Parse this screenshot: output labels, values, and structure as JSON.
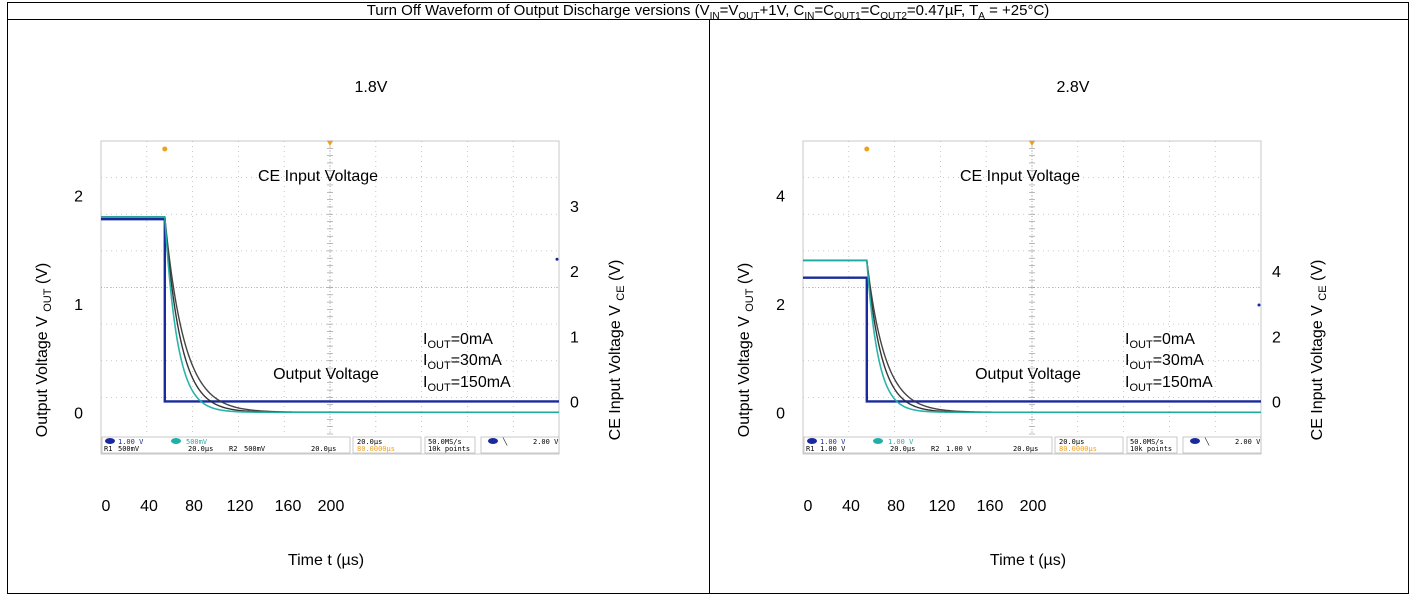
{
  "header": {
    "title_parts": [
      {
        "t": "Turn Off Waveform of Output Discharge versions (V"
      },
      {
        "t": "IN",
        "sub": true
      },
      {
        "t": "=V"
      },
      {
        "t": "OUT",
        "sub": true
      },
      {
        "t": "+1V, C"
      },
      {
        "t": "IN",
        "sub": true
      },
      {
        "t": "=C"
      },
      {
        "t": "OUT1",
        "sub": true
      },
      {
        "t": "=C"
      },
      {
        "t": "OUT2",
        "sub": true
      },
      {
        "t": "=0.47µF, T"
      },
      {
        "t": "A",
        "sub": true
      },
      {
        "t": " = +25°C)"
      }
    ]
  },
  "chart_data": [
    {
      "type": "line",
      "title": "1.8V",
      "xlabel": "Time t (µs)",
      "ylabel": "Output Voltage V OUT (V)",
      "y2label": "CE Input Voltage V CE (V)",
      "x_ticks": [
        0,
        40,
        80,
        120,
        160,
        200
      ],
      "y_ticks": [
        0,
        1,
        2
      ],
      "y2_ticks": [
        0,
        1,
        2,
        3
      ],
      "xlim": [
        0,
        200
      ],
      "ylim": [
        -0.2,
        2.5
      ],
      "y2lim": [
        -0.5,
        4
      ],
      "grid": true,
      "ce_label": "CE Input Voltage",
      "out_label": "Output Voltage",
      "legend": [
        "IOUT=0mA",
        "IOUT=30mA",
        "IOUT=150mA"
      ],
      "ce_high": 2.8,
      "ce_low": 0,
      "ce_fall_x": 28,
      "vout": 1.8,
      "tau": [
        7,
        8.5,
        5.5
      ],
      "series": [
        {
          "name": "CE",
          "color": "#1a2a9c"
        },
        {
          "name": "IOUT=0mA",
          "color": "#2a2a2a"
        },
        {
          "name": "IOUT=30mA",
          "color": "#3a3a3a"
        },
        {
          "name": "IOUT=150mA",
          "color": "#20b0a8"
        }
      ],
      "scope_status": {
        "ch1": "1.00 V",
        "ch2": "500mV",
        "r1": "500mV",
        "r1t": "20.0µs",
        "r2": "500mV",
        "r2t": "20.0µs",
        "timebase": "20.0µs",
        "trig_delay": "80.0000µs",
        "rate": "50.0MS/s",
        "points": "10k points",
        "trig": "2.00 V"
      }
    },
    {
      "type": "line",
      "title": "2.8V",
      "xlabel": "Time t (µs)",
      "ylabel": "Output Voltage V OUT (V)",
      "y2label": "CE Input Voltage V CE (V)",
      "x_ticks": [
        0,
        40,
        80,
        120,
        160,
        200
      ],
      "y_ticks": [
        0,
        2,
        4
      ],
      "y2_ticks": [
        0,
        2,
        4
      ],
      "xlim": [
        0,
        200
      ],
      "ylim": [
        -0.4,
        5
      ],
      "y2lim": [
        -1,
        8
      ],
      "grid": true,
      "ce_label": "CE Input Voltage",
      "out_label": "Output Voltage",
      "legend": [
        "IOUT=0mA",
        "IOUT=30mA",
        "IOUT=150mA"
      ],
      "ce_high": 3.8,
      "ce_low": 0,
      "ce_fall_x": 28,
      "vout": 2.8,
      "tau": [
        6.5,
        8,
        5
      ],
      "series": [
        {
          "name": "CE",
          "color": "#1a2a9c"
        },
        {
          "name": "IOUT=0mA",
          "color": "#2a2a2a"
        },
        {
          "name": "IOUT=30mA",
          "color": "#3a3a3a"
        },
        {
          "name": "IOUT=150mA",
          "color": "#20b0a8"
        }
      ],
      "scope_status": {
        "ch1": "1.00 V",
        "ch2": "1.00 V",
        "r1": "1.00 V",
        "r1t": "20.0µs",
        "r2": "1.00 V",
        "r2t": "20.0µs",
        "timebase": "20.0µs",
        "trig_delay": "80.0000µs",
        "rate": "50.0MS/s",
        "points": "10k points",
        "trig": "2.00 V"
      }
    }
  ]
}
